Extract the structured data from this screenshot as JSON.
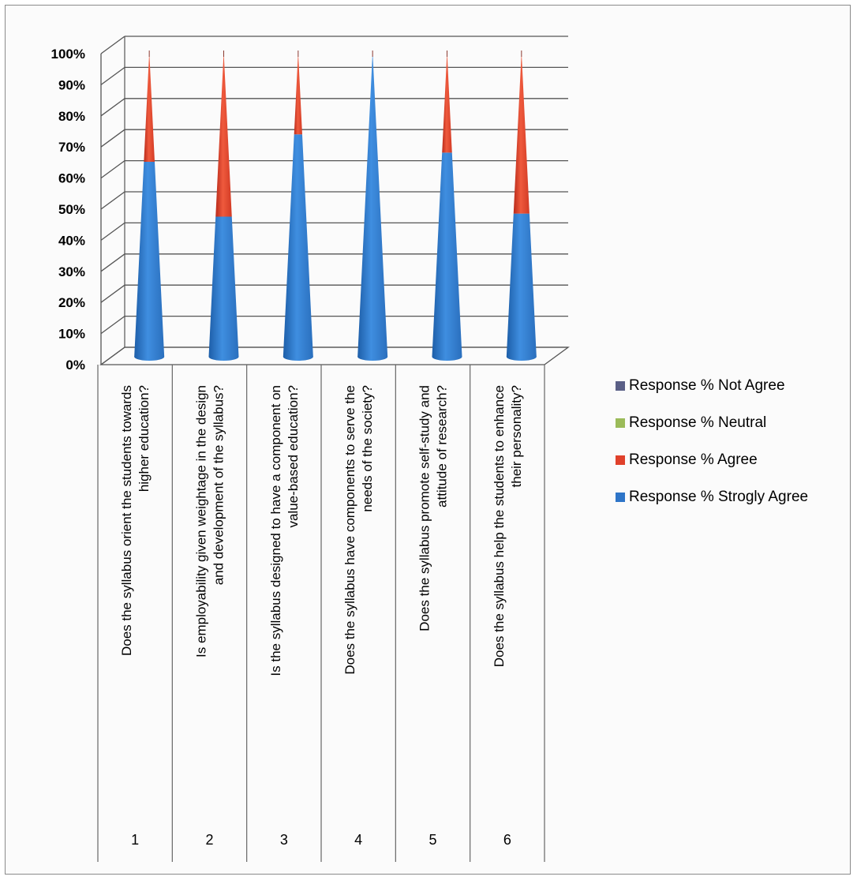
{
  "chart_data": {
    "type": "bar",
    "bar_shape": "cone",
    "yaxis": {
      "min": 0,
      "max": 100,
      "step": 10,
      "tick_labels": [
        "0%",
        "10%",
        "20%",
        "30%",
        "40%",
        "50%",
        "60%",
        "70%",
        "80%",
        "90%",
        "100%"
      ]
    },
    "stacked": true,
    "categories": [
      {
        "index": "1",
        "label_lines": [
          "Does the syllabus orient the students towards",
          "higher education?"
        ]
      },
      {
        "index": "2",
        "label_lines": [
          "Is employability given weightage in the design",
          "and development of the syllabus?"
        ]
      },
      {
        "index": "3",
        "label_lines": [
          "Is the syllabus designed to have a component on",
          "value-based education?"
        ]
      },
      {
        "index": "4",
        "label_lines": [
          "Does the syllabus have components to serve the",
          "needs of the society?"
        ]
      },
      {
        "index": "5",
        "label_lines": [
          "Does the syllabus promote self-study and",
          "attitude of research?"
        ]
      },
      {
        "index": "6",
        "label_lines": [
          "Does the syllabus help the students to enhance",
          "their personality?"
        ]
      }
    ],
    "series": [
      {
        "name": "Response % Strogly Agree",
        "color": "#2e75c8",
        "values": [
          64,
          46,
          73,
          100,
          67,
          47
        ]
      },
      {
        "name": "Response % Agree",
        "color": "#e0412b",
        "values": [
          36,
          54,
          27,
          0,
          33,
          53
        ]
      },
      {
        "name": "Response % Neutral",
        "color": "#9bbb59",
        "values": [
          0,
          0,
          0,
          0,
          0,
          0
        ]
      },
      {
        "name": "Response % Not Agree",
        "color": "#5a5f86",
        "values": [
          0,
          0,
          0,
          0,
          0,
          0
        ]
      }
    ],
    "legend": {
      "position": "right",
      "order": [
        "Response % Not Agree",
        "Response % Neutral",
        "Response % Agree",
        "Response % Strogly Agree"
      ]
    },
    "grid": true
  }
}
